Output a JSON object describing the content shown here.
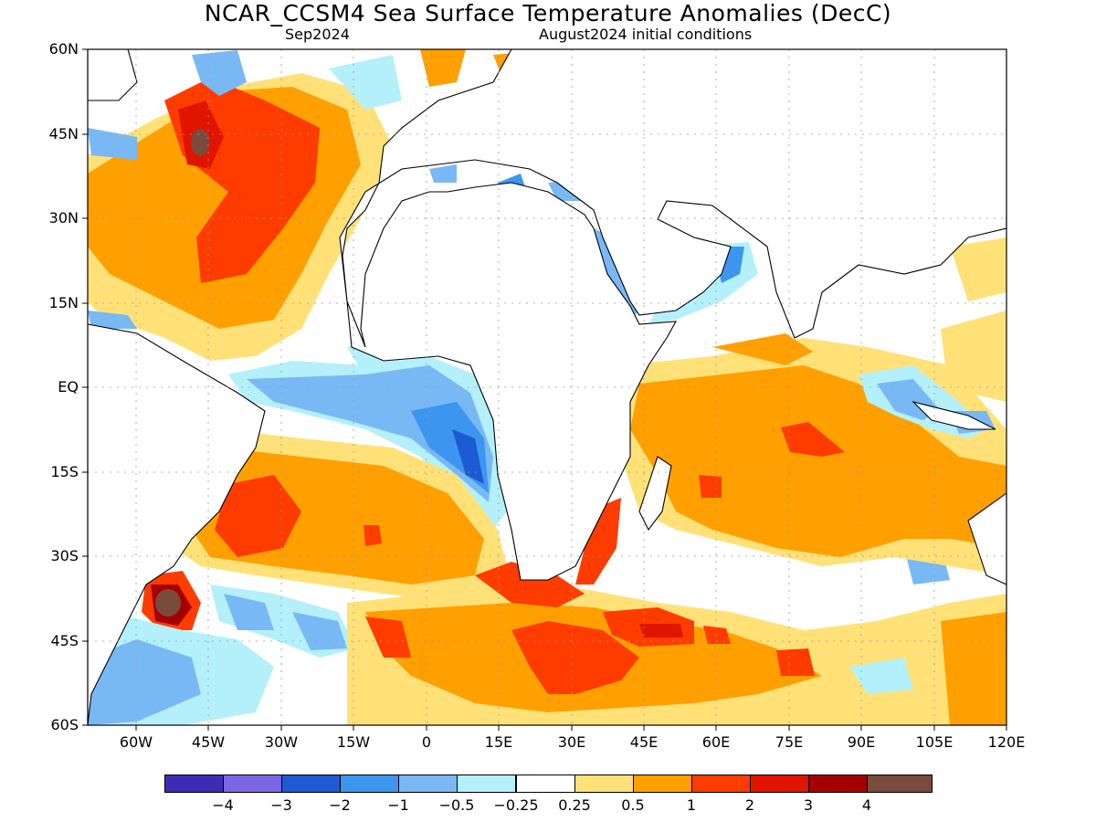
{
  "title": "NCAR_CCSM4 Sea Surface Temperature Anomalies (DecC)",
  "subtitle_left": "Sep2024",
  "subtitle_right": "August2024 initial conditions",
  "map": {
    "lon_range": [
      -70,
      120
    ],
    "lat_range": [
      -60,
      60
    ],
    "y_ticks": [
      "60N",
      "45N",
      "30N",
      "15N",
      "EQ",
      "15S",
      "30S",
      "45S",
      "60S"
    ],
    "x_ticks": [
      "60W",
      "45W",
      "30W",
      "15W",
      "0",
      "15E",
      "30E",
      "45E",
      "60E",
      "75E",
      "90E",
      "105E",
      "120E"
    ],
    "gridlines": true
  },
  "colorbar": {
    "colors": [
      "#3c2db4",
      "#7d66e6",
      "#1e5ad2",
      "#3c96f0",
      "#78b9f5",
      "#b4f0fa",
      "#ffffff",
      "#ffe178",
      "#ffa000",
      "#ff3c00",
      "#e11400",
      "#a50000",
      "#784b3c"
    ],
    "labels": [
      "−4",
      "−3",
      "−2",
      "−1",
      "−0.5",
      "−0.25",
      "0.25",
      "0.5",
      "1",
      "2",
      "3",
      "4"
    ]
  }
}
